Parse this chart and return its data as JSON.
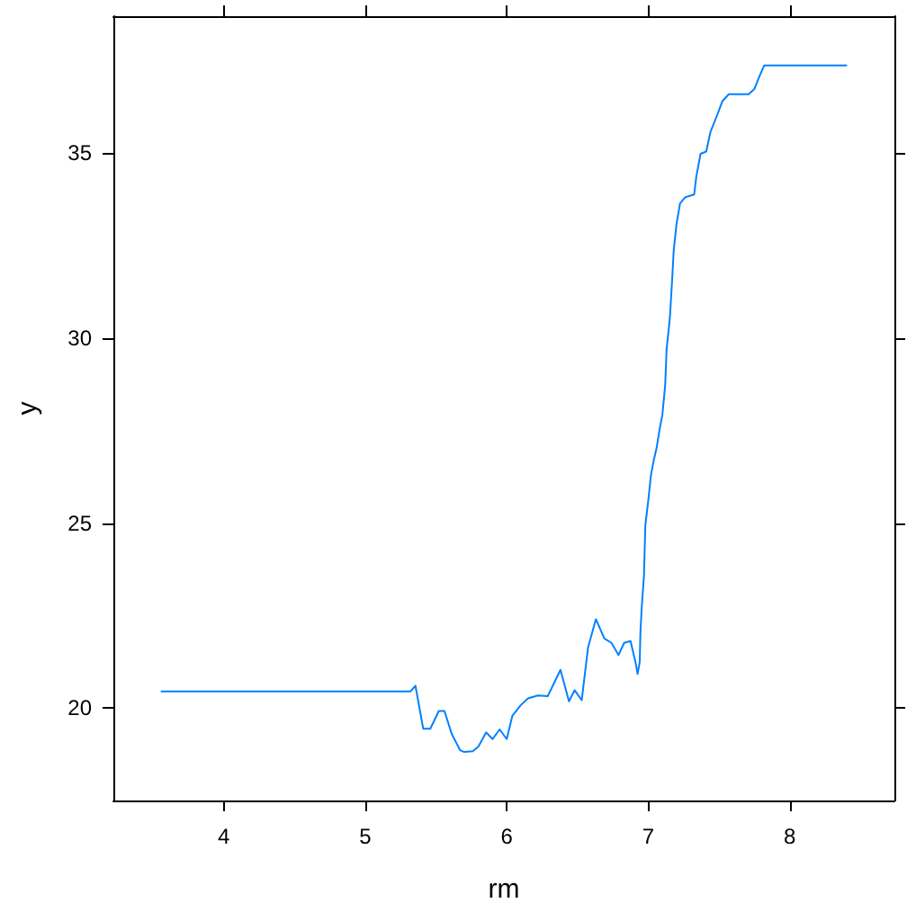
{
  "chart_data": {
    "type": "line",
    "xlabel": "rm",
    "ylabel": "y",
    "x": [
      3.56,
      5.32,
      5.355,
      5.41,
      5.46,
      5.52,
      5.56,
      5.61,
      5.67,
      5.7,
      5.76,
      5.8,
      5.855,
      5.9,
      5.95,
      6.0,
      6.04,
      6.1,
      6.15,
      6.22,
      6.29,
      6.38,
      6.44,
      6.48,
      6.53,
      6.575,
      6.63,
      6.69,
      6.74,
      6.79,
      6.83,
      6.875,
      6.91,
      6.925,
      6.94,
      6.945,
      6.955,
      6.97,
      6.98,
      7.0,
      7.02,
      7.04,
      7.06,
      7.08,
      7.1,
      7.12,
      7.13,
      7.15,
      7.155,
      7.17,
      7.18,
      7.2,
      7.225,
      7.26,
      7.325,
      7.34,
      7.37,
      7.41,
      7.44,
      7.49,
      7.525,
      7.57,
      7.71,
      7.75,
      7.78,
      7.82,
      8.4
    ],
    "series": [
      {
        "color": "#0080ff",
        "values": [
          20.45,
          20.45,
          20.6,
          19.44,
          19.44,
          19.92,
          19.92,
          19.31,
          18.86,
          18.81,
          18.83,
          18.96,
          19.34,
          19.16,
          19.42,
          19.16,
          19.79,
          20.08,
          20.26,
          20.34,
          20.32,
          21.03,
          20.18,
          20.48,
          20.21,
          21.64,
          22.4,
          21.88,
          21.76,
          21.43,
          21.76,
          21.81,
          21.24,
          20.92,
          21.24,
          22.05,
          22.77,
          23.57,
          24.95,
          25.59,
          26.31,
          26.71,
          27.04,
          27.52,
          27.92,
          28.73,
          29.7,
          30.42,
          30.66,
          31.63,
          32.35,
          33.08,
          33.64,
          33.8,
          33.88,
          34.37,
          34.98,
          35.04,
          35.57,
          36.05,
          36.41,
          36.59,
          36.59,
          36.73,
          37.02,
          37.37,
          37.37
        ]
      }
    ],
    "xlim": [
      3.22,
      8.74
    ],
    "ylim": [
      17.5,
      38.7
    ],
    "xticks": [
      4,
      5,
      6,
      7,
      8
    ],
    "yticks": [
      20,
      25,
      30,
      35
    ],
    "grid": false,
    "marker": "none",
    "line_style": "solid"
  }
}
